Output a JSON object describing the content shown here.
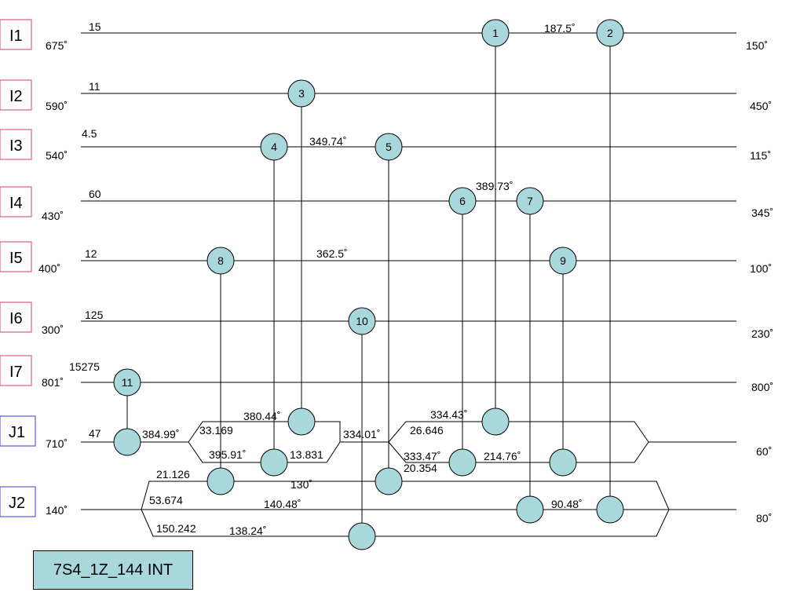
{
  "streams": [
    {
      "id": "I1",
      "tin": "675˚",
      "tout": "150˚",
      "cp": "15"
    },
    {
      "id": "I2",
      "tin": "590˚",
      "tout": "450˚",
      "cp": "11"
    },
    {
      "id": "I3",
      "tin": "540˚",
      "tout": "115˚",
      "cp": "4.5"
    },
    {
      "id": "I4",
      "tin": "430˚",
      "tout": "345˚",
      "cp": "60"
    },
    {
      "id": "I5",
      "tin": "400˚",
      "tout": "100˚",
      "cp": "12"
    },
    {
      "id": "I6",
      "tin": "300˚",
      "tout": "230˚",
      "cp": "125"
    },
    {
      "id": "I7",
      "tin": "801˚",
      "tout": "800˚",
      "cp": "15275"
    },
    {
      "id": "J1",
      "tin": "710˚",
      "tout": "60˚",
      "cp": "47"
    },
    {
      "id": "J2",
      "tin": "140˚",
      "tout": "80˚",
      "cp": ""
    }
  ],
  "nodes": [
    "1",
    "2",
    "3",
    "4",
    "5",
    "6",
    "7",
    "8",
    "9",
    "10",
    "11"
  ],
  "annotations": {
    "i1_mid": "187.5˚",
    "i3_mid": "349.74˚",
    "i4_mid": "389.73˚",
    "i5_mid": "362.5˚",
    "j1_a": "384.99˚",
    "j1_b": "33.169",
    "j1_c": "380.44˚",
    "j1_d": "395.91˚",
    "j1_e": "13.831",
    "j1_f": "334.01˚",
    "j1_g": "334.43˚",
    "j1_h": "26.646",
    "j1_i": "333.47˚",
    "j1_j": "20.354",
    "j1_k": "214.76˚",
    "j2_a": "21.126",
    "j2_b": "130˚",
    "j2_c": "53.674",
    "j2_d": "140.48˚",
    "j2_e": "90.48˚",
    "j2_f": "150.242",
    "j2_g": "138.24˚"
  },
  "title": "7S4_1Z_144 INT",
  "colors": {
    "hot_box": "#d63a7a",
    "cold_box": "#3a3ad6",
    "node_fill": "#a8d8dc"
  }
}
